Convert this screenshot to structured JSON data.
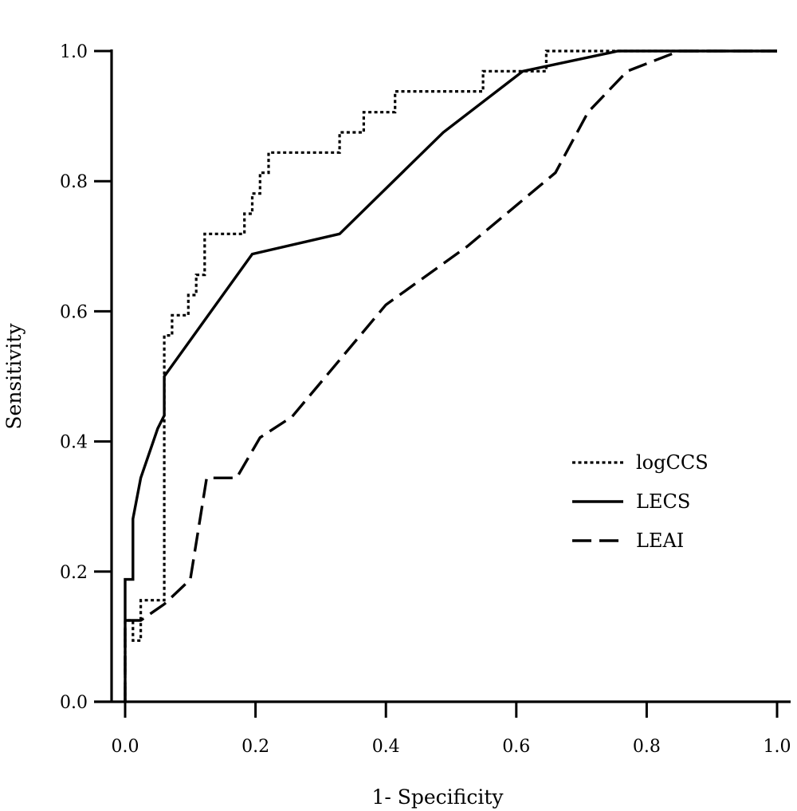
{
  "chart_data": {
    "type": "line",
    "title": "",
    "xlabel": "1- Specificity",
    "ylabel": "Sensitivity",
    "xlim": [
      0,
      1
    ],
    "ylim": [
      0,
      1
    ],
    "x_ticks": [
      0.0,
      0.2,
      0.4,
      0.6,
      0.8,
      1.0
    ],
    "y_ticks": [
      0.0,
      0.2,
      0.4,
      0.6,
      0.8,
      1.0
    ],
    "x_tick_labels": [
      "0.0",
      "0.2",
      "0.4",
      "0.6",
      "0.8",
      "1.0"
    ],
    "y_tick_labels": [
      "0.0",
      "0.2",
      "0.4",
      "0.6",
      "0.8",
      "1.0"
    ],
    "grid": false,
    "legend_placement": "center-right",
    "series": [
      {
        "name": "logCCS",
        "style": "dotted",
        "color": "#000000",
        "points": [
          [
            0.0,
            0.0
          ],
          [
            0.0,
            0.125
          ],
          [
            0.012,
            0.125
          ],
          [
            0.012,
            0.094
          ],
          [
            0.024,
            0.094
          ],
          [
            0.024,
            0.156
          ],
          [
            0.06,
            0.156
          ],
          [
            0.06,
            0.563
          ],
          [
            0.072,
            0.563
          ],
          [
            0.072,
            0.594
          ],
          [
            0.097,
            0.594
          ],
          [
            0.097,
            0.625
          ],
          [
            0.109,
            0.625
          ],
          [
            0.109,
            0.656
          ],
          [
            0.122,
            0.656
          ],
          [
            0.122,
            0.719
          ],
          [
            0.183,
            0.719
          ],
          [
            0.183,
            0.75
          ],
          [
            0.195,
            0.75
          ],
          [
            0.195,
            0.781
          ],
          [
            0.207,
            0.781
          ],
          [
            0.207,
            0.813
          ],
          [
            0.22,
            0.813
          ],
          [
            0.22,
            0.844
          ],
          [
            0.329,
            0.844
          ],
          [
            0.329,
            0.875
          ],
          [
            0.366,
            0.875
          ],
          [
            0.366,
            0.906
          ],
          [
            0.414,
            0.906
          ],
          [
            0.414,
            0.938
          ],
          [
            0.549,
            0.938
          ],
          [
            0.549,
            0.969
          ],
          [
            0.646,
            0.969
          ],
          [
            0.646,
            1.0
          ],
          [
            1.0,
            1.0
          ]
        ]
      },
      {
        "name": "LECS",
        "style": "solid",
        "color": "#000000",
        "points": [
          [
            0.0,
            0.0
          ],
          [
            0.0,
            0.188
          ],
          [
            0.012,
            0.188
          ],
          [
            0.012,
            0.281
          ],
          [
            0.024,
            0.344
          ],
          [
            0.05,
            0.42
          ],
          [
            0.06,
            0.44
          ],
          [
            0.06,
            0.5
          ],
          [
            0.195,
            0.688
          ],
          [
            0.329,
            0.719
          ],
          [
            0.488,
            0.875
          ],
          [
            0.61,
            0.969
          ],
          [
            0.756,
            1.0
          ],
          [
            1.0,
            1.0
          ]
        ]
      },
      {
        "name": "LEAI",
        "style": "dashed",
        "color": "#000000",
        "points": [
          [
            0.0,
            0.0
          ],
          [
            0.0,
            0.125
          ],
          [
            0.024,
            0.125
          ],
          [
            0.06,
            0.15
          ],
          [
            0.1,
            0.188
          ],
          [
            0.125,
            0.344
          ],
          [
            0.171,
            0.344
          ],
          [
            0.207,
            0.406
          ],
          [
            0.256,
            0.438
          ],
          [
            0.4,
            0.61
          ],
          [
            0.525,
            0.7
          ],
          [
            0.66,
            0.813
          ],
          [
            0.71,
            0.906
          ],
          [
            0.77,
            0.969
          ],
          [
            0.85,
            1.0
          ],
          [
            1.0,
            1.0
          ]
        ]
      }
    ]
  }
}
